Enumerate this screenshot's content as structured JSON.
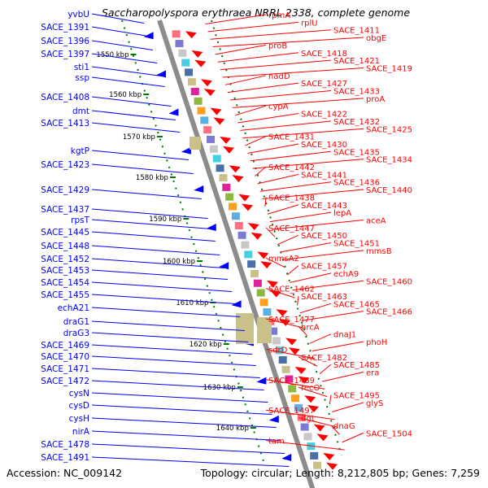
{
  "title": "Saccharopolyspora erythraea NRRL 2338, complete genome",
  "footer": {
    "accession": "Accession: NC_009142",
    "summary": "Topology: circular; Length: 8,212,805 bp; Genes: 7,259"
  },
  "colors": {
    "backbone": "#8c8c8c",
    "forward_arrow": "#ff0000",
    "reverse_arrow": "#0000ff",
    "label_red": "#ff0000",
    "label_blue": "#0000ff",
    "tick_green": "#007700"
  },
  "ticks": [
    "1550 kbp",
    "1560 kbp",
    "1570 kbp",
    "1580 kbp",
    "1590 kbp",
    "1600 kbp",
    "1610 kbp",
    "1620 kbp",
    "1630 kbp",
    "1640 kbp"
  ],
  "left_labels": [
    "yvbU",
    "SACE_1391",
    "SACE_1396",
    "SACE_1397",
    "sti1",
    "ssp",
    "SACE_1408",
    "dmt",
    "SACE_1413",
    "kgtP",
    "SACE_1423",
    "SACE_1429",
    "SACE_1437",
    "rpsT",
    "SACE_1445",
    "SACE_1448",
    "SACE_1452",
    "SACE_1453",
    "SACE_1454",
    "SACE_1455",
    "echA21",
    "draG1",
    "draG3",
    "SACE_1469",
    "SACE_1470",
    "SACE_1471",
    "SACE_1472",
    "cysN",
    "cysD",
    "cysH",
    "nirA",
    "SACE_1478",
    "SACE_1491"
  ],
  "right_labels": [
    "rpmA",
    "rplU",
    "SACE_1411",
    "obgE",
    "proB",
    "SACE_1418",
    "SACE_1421",
    "SACE_1419",
    "nadD",
    "SACE_1427",
    "SACE_1433",
    "proA",
    "cypA",
    "SACE_1422",
    "SACE_1432",
    "SACE_1425",
    "SACE_1431",
    "SACE_1430",
    "SACE_1435",
    "SACE_1434",
    "SACE_1442",
    "SACE_1441",
    "SACE_1436",
    "SACE_1440",
    "SACE_1438",
    "SACE_1443",
    "lepA",
    "aceA",
    "SACE_1447",
    "SACE_1450",
    "SACE_1451",
    "mmsB",
    "mmsA2",
    "SACE_1457",
    "echA9",
    "SACE_1460",
    "SACE_1462",
    "SACE_1463",
    "SACE_1465",
    "SACE_1466",
    "SACE_1477",
    "hrcA",
    "dnaJ1",
    "phoH",
    "sdrD",
    "SACE_1482",
    "SACE_1485",
    "era",
    "SACE_1489",
    "recO",
    "SACE_1495",
    "glyS",
    "SACE_1497",
    "dgt",
    "dnaG",
    "SACE_1504",
    "tam"
  ]
}
